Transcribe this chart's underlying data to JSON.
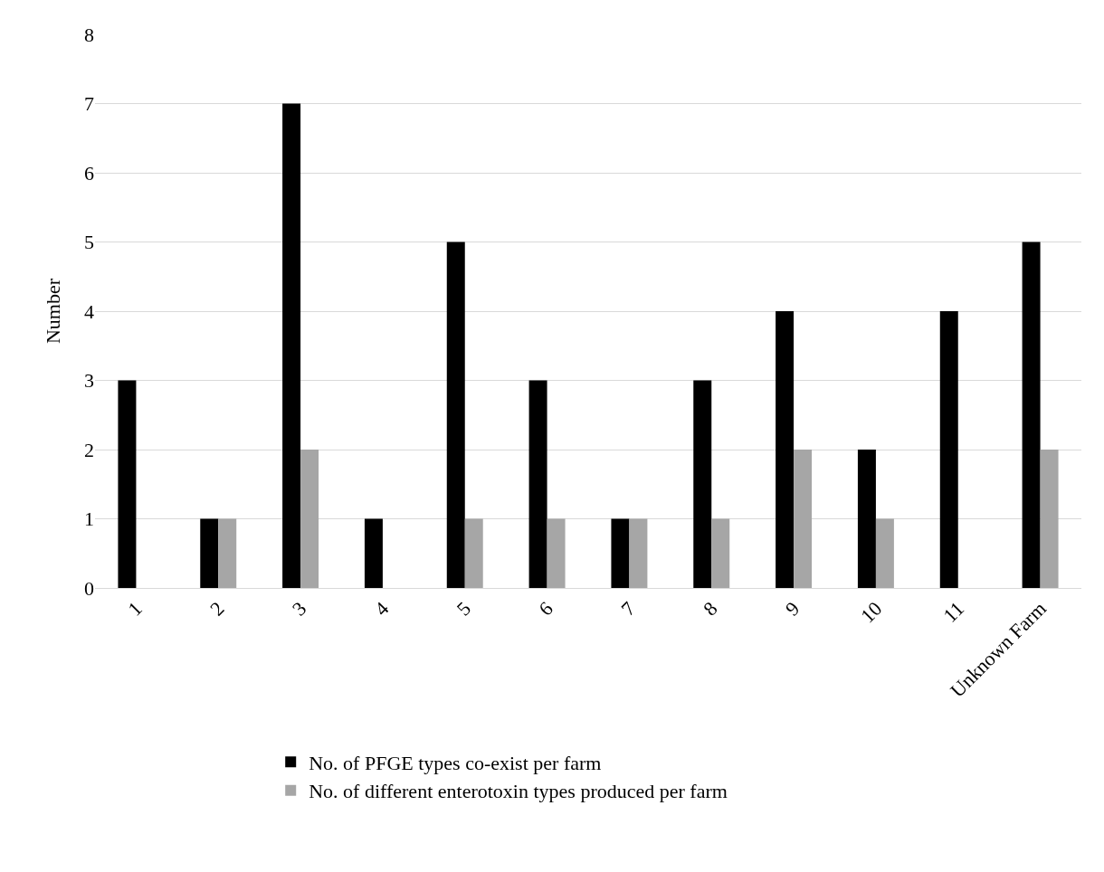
{
  "chart_data": {
    "type": "bar",
    "ylabel": "Number",
    "categories": [
      "1",
      "2",
      "3",
      "4",
      "5",
      "6",
      "7",
      "8",
      "9",
      "10",
      "11",
      "Unknown Farm"
    ],
    "series": [
      {
        "name": "No. of PFGE types co-exist per farm",
        "color": "#000000",
        "values": [
          3,
          1,
          7,
          1,
          5,
          3,
          1,
          3,
          4,
          2,
          4,
          5
        ]
      },
      {
        "name": "No. of different enterotoxin types produced per farm",
        "color": "#a6a6a6",
        "values": [
          0,
          1,
          2,
          0,
          1,
          1,
          1,
          1,
          2,
          1,
          0,
          2
        ]
      }
    ],
    "ylim": [
      0,
      8
    ],
    "yticks": [
      0,
      1,
      2,
      3,
      4,
      5,
      6,
      7,
      8
    ],
    "grid": "y",
    "legend": "bottom"
  }
}
